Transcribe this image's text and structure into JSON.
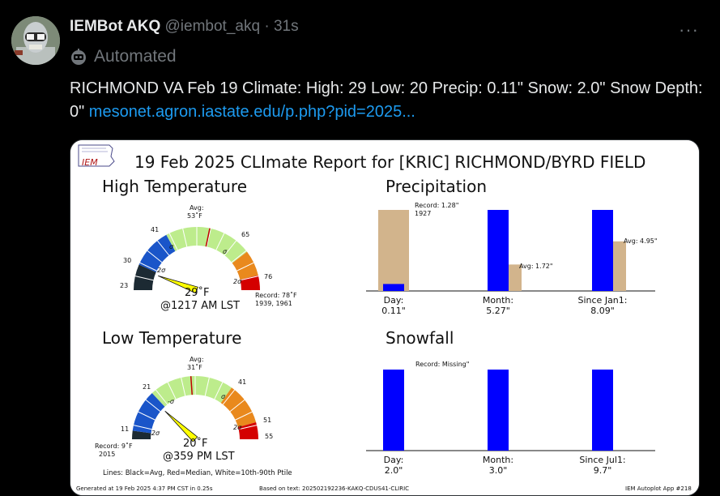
{
  "tweet": {
    "author_name": "IEMBot AKQ",
    "handle": "@iembot_akq",
    "separator": "·",
    "time": "31s",
    "automated_label": "Automated",
    "more_icon": "more-horizontal-icon",
    "text": "RICHMOND VA Feb 19 Climate: High: 29 Low: 20 Precip: 0.11\" Snow: 2.0\" Snow Depth: 0\" ",
    "link": "mesonet.agron.iastate.edu/p.php?pid=2025..."
  },
  "report": {
    "logo_text": "IEM",
    "title": "19 Feb 2025 CLImate Report for [KRIC] RICHMOND/BYRD FIELD",
    "high": {
      "title": "High Temperature",
      "avg_label": "Avg:",
      "avg_value": "53˚F",
      "ticks": [
        "23",
        "30",
        "41",
        "65",
        "76"
      ],
      "sigma_labels": [
        "2σ",
        "σ",
        "σ",
        "2σ"
      ],
      "value_label": "29˚F",
      "time_label": "@1217 AM LST",
      "record_line1": "Record: 78˚F",
      "record_line2": "1939, 1961",
      "gauge": {
        "min": 23,
        "max": 76,
        "avg": 53,
        "observed": 29
      }
    },
    "low": {
      "title": "Low Temperature",
      "avg_label": "Avg:",
      "avg_value": "31˚F",
      "ticks": [
        "11",
        "21",
        "41",
        "51",
        "55"
      ],
      "sigma_labels": [
        "-2σ",
        "-σ",
        "σ",
        "2σ"
      ],
      "value_label": "20˚F",
      "time_label": "@359 PM LST",
      "record_line1": "Record: 9˚F",
      "record_line2": "2015",
      "gauge": {
        "min": 9,
        "max": 55,
        "avg": 31,
        "observed": 20
      }
    },
    "lines_note": "Lines: Black=Avg, Red=Median, White=10th-90th Ptile",
    "footer_left": "Generated at 19 Feb 2025 4:37 PM CST in 0.25s",
    "footer_mid": "Based on text: 202502192236-KAKQ-CDUS41-CLIRIC",
    "footer_right": "IEM Autoplot App #218"
  },
  "chart_data": [
    {
      "type": "bar",
      "title": "Precipitation",
      "categories": [
        "Day:",
        "Month:",
        "Since Jan1:"
      ],
      "value_labels": [
        "0.11\"",
        "5.27\"",
        "8.09\""
      ],
      "series": [
        {
          "values": [
            0.11,
            5.27,
            8.09
          ]
        },
        {
          "values": [
            1.28,
            1.72,
            4.95
          ]
        }
      ],
      "annotations": [
        "Record: 1.28\"",
        "1927",
        "Avg: 1.72\"",
        "Avg: 4.95\""
      ],
      "colors": {
        "observed": "#0000ff",
        "reference": "#d2b48c"
      }
    },
    {
      "type": "bar",
      "title": "Snowfall",
      "categories": [
        "Day:",
        "Month:",
        "Since Jul1:"
      ],
      "value_labels": [
        "2.0\"",
        "3.0\"",
        "9.7\""
      ],
      "series": [
        {
          "values": [
            2.0,
            3.0,
            9.7
          ]
        }
      ],
      "annotations": [
        "Record: Missing\""
      ],
      "colors": {
        "observed": "#0000ff"
      }
    }
  ]
}
